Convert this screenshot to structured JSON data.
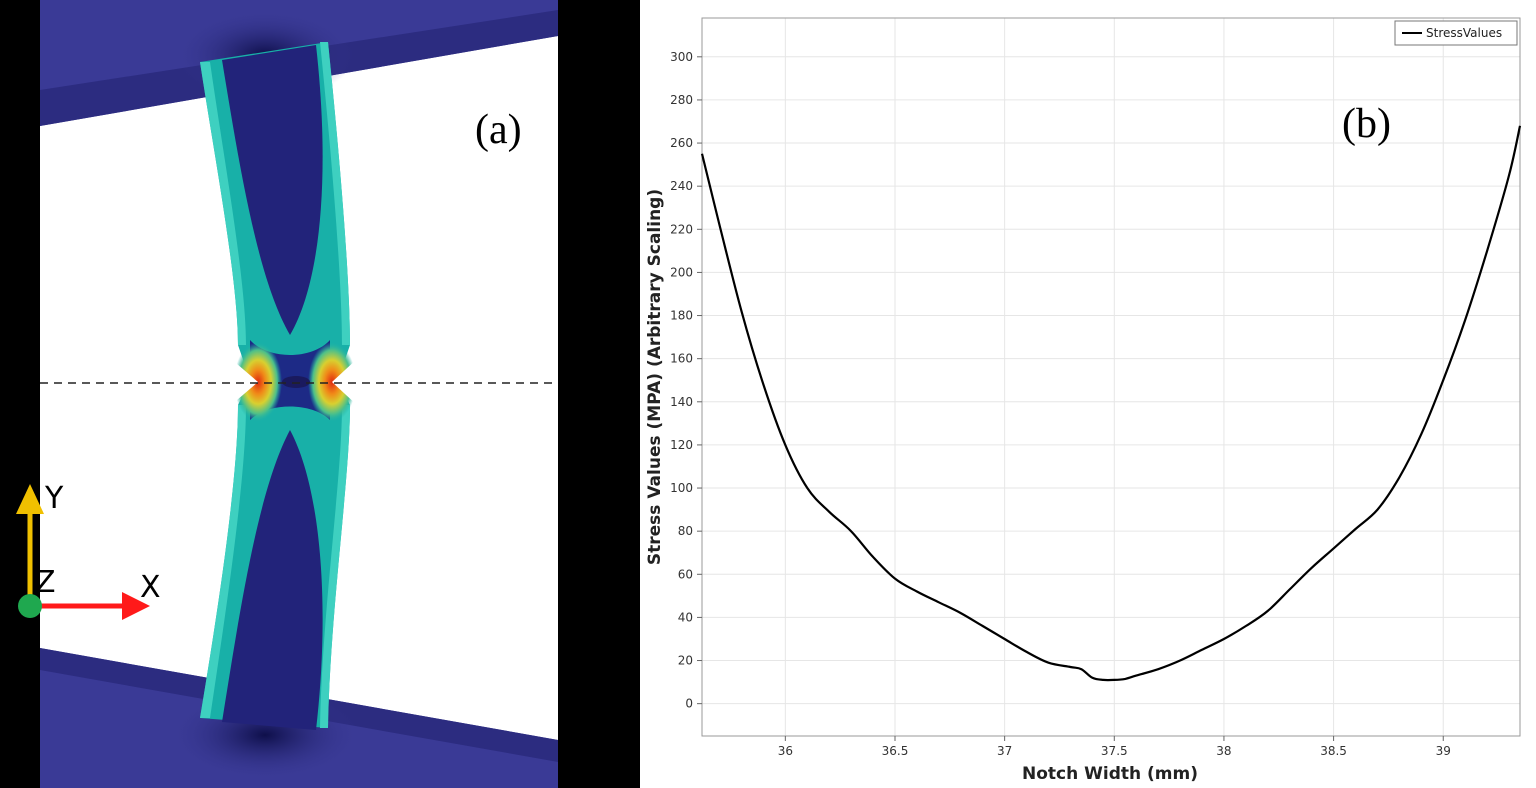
{
  "panel_a": {
    "label": "(a)",
    "axis_labels": {
      "y": "Y",
      "z": "Z",
      "x": "X"
    },
    "colors": {
      "background": "#ffffff",
      "clamp": "#3a3a96",
      "low_stress": "#22237a",
      "mid_stress": "#18b0a8",
      "high_stress": "#e02a10",
      "y_axis": "#f0c000",
      "x_axis": "#ff1a1a",
      "origin": "#1fa84f"
    }
  },
  "panel_b": {
    "label": "(b)",
    "chart_data": {
      "type": "line",
      "title": "",
      "xlabel": "Notch Width (mm)",
      "ylabel": "Stress Values (MPA) (Arbitrary Scaling)",
      "xlim": [
        35.62,
        39.35
      ],
      "ylim": [
        -15,
        318
      ],
      "xticks": [
        36,
        36.5,
        37,
        37.5,
        38,
        38.5,
        39
      ],
      "xtick_labels": [
        "36",
        "36.5",
        "37",
        "37.5",
        "38",
        "38.5",
        "39"
      ],
      "yticks": [
        0,
        20,
        40,
        60,
        80,
        100,
        120,
        140,
        160,
        180,
        200,
        220,
        240,
        260,
        280,
        300
      ],
      "ytick_labels": [
        "0",
        "20",
        "40",
        "60",
        "80",
        "100",
        "120",
        "140",
        "160",
        "180",
        "200",
        "220",
        "240",
        "260",
        "280",
        "300"
      ],
      "grid": true,
      "legend_position": "top-right",
      "series": [
        {
          "name": "StressValues",
          "color": "#000000",
          "x": [
            35.62,
            35.7,
            35.8,
            35.9,
            36.0,
            36.1,
            36.2,
            36.3,
            36.4,
            36.5,
            36.6,
            36.7,
            36.8,
            36.9,
            37.0,
            37.1,
            37.2,
            37.3,
            37.35,
            37.4,
            37.45,
            37.5,
            37.55,
            37.6,
            37.7,
            37.8,
            37.9,
            38.0,
            38.1,
            38.2,
            38.3,
            38.4,
            38.5,
            38.6,
            38.7,
            38.8,
            38.9,
            39.0,
            39.1,
            39.2,
            39.3,
            39.35
          ],
          "y": [
            255,
            222,
            182,
            148,
            120,
            100,
            89,
            80,
            68,
            58,
            52,
            47,
            42,
            36,
            30,
            24,
            19,
            17,
            16,
            12,
            11,
            11,
            11.5,
            13,
            16,
            20,
            25,
            30,
            36,
            43,
            53,
            63,
            72,
            81,
            90,
            105,
            125,
            150,
            178,
            210,
            245,
            268
          ]
        }
      ]
    }
  }
}
